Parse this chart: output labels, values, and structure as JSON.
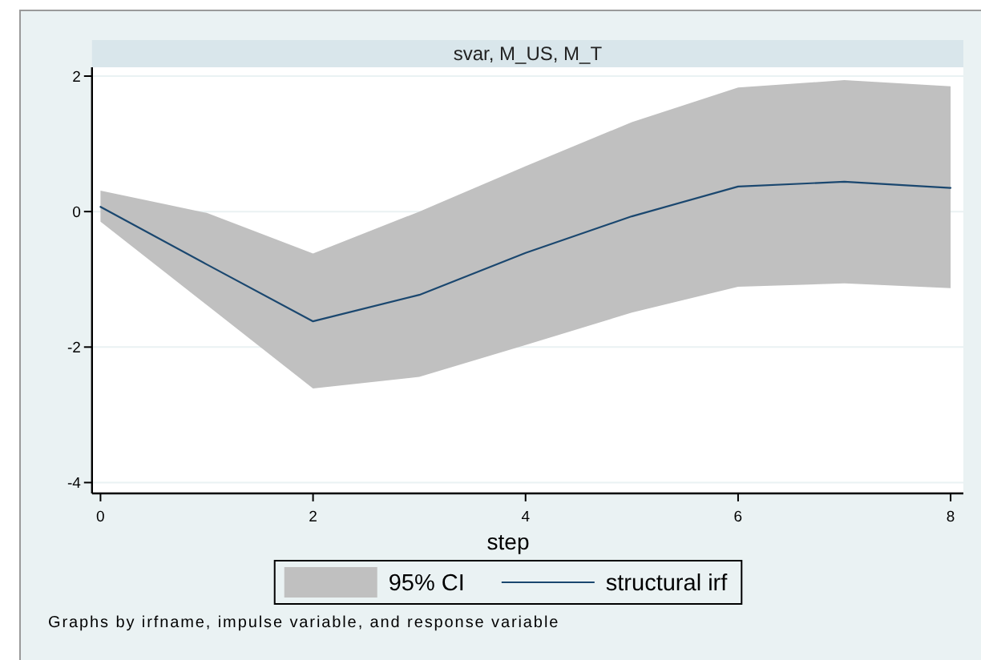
{
  "chart_data": {
    "type": "line",
    "title": "svar, M_US, M_T",
    "xlabel": "step",
    "x": [
      0,
      1,
      2,
      3,
      4,
      5,
      6,
      7,
      8
    ],
    "xlim": [
      -0.08,
      8.12
    ],
    "xticks": [
      0,
      2,
      4,
      6,
      8
    ],
    "ylim": [
      -4.16,
      2.13
    ],
    "yticks": [
      -4,
      -2,
      0,
      2
    ],
    "grid": "y",
    "legend": "bottom",
    "series": [
      {
        "name": "structural irf",
        "color": "#1a476f",
        "values": [
          0.07,
          -0.78,
          -1.62,
          -1.23,
          -0.61,
          -0.07,
          0.37,
          0.44,
          0.35
        ],
        "lower": [
          -0.15,
          -1.38,
          -2.61,
          -2.44,
          -1.97,
          -1.49,
          -1.11,
          -1.06,
          -1.13
        ],
        "upper": [
          0.31,
          -0.02,
          -0.62,
          0.0,
          0.67,
          1.32,
          1.83,
          1.94,
          1.85
        ]
      }
    ],
    "annotations": [
      "95% CI",
      "Graphs by irfname, impulse variable, and response variable"
    ]
  }
}
